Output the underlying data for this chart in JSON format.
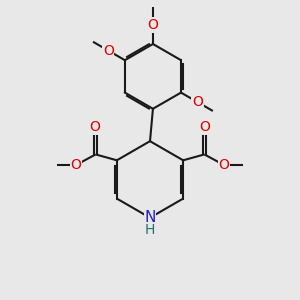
{
  "bg_color": "#e8e8e8",
  "bond_color": "#1a1a1a",
  "oxygen_color": "#e00000",
  "nitrogen_color": "#2020cc",
  "hydrogen_color": "#207070",
  "line_width": 1.5,
  "figsize": [
    3.0,
    3.0
  ],
  "dpi": 100,
  "xlim": [
    0,
    10
  ],
  "ylim": [
    0,
    10
  ]
}
